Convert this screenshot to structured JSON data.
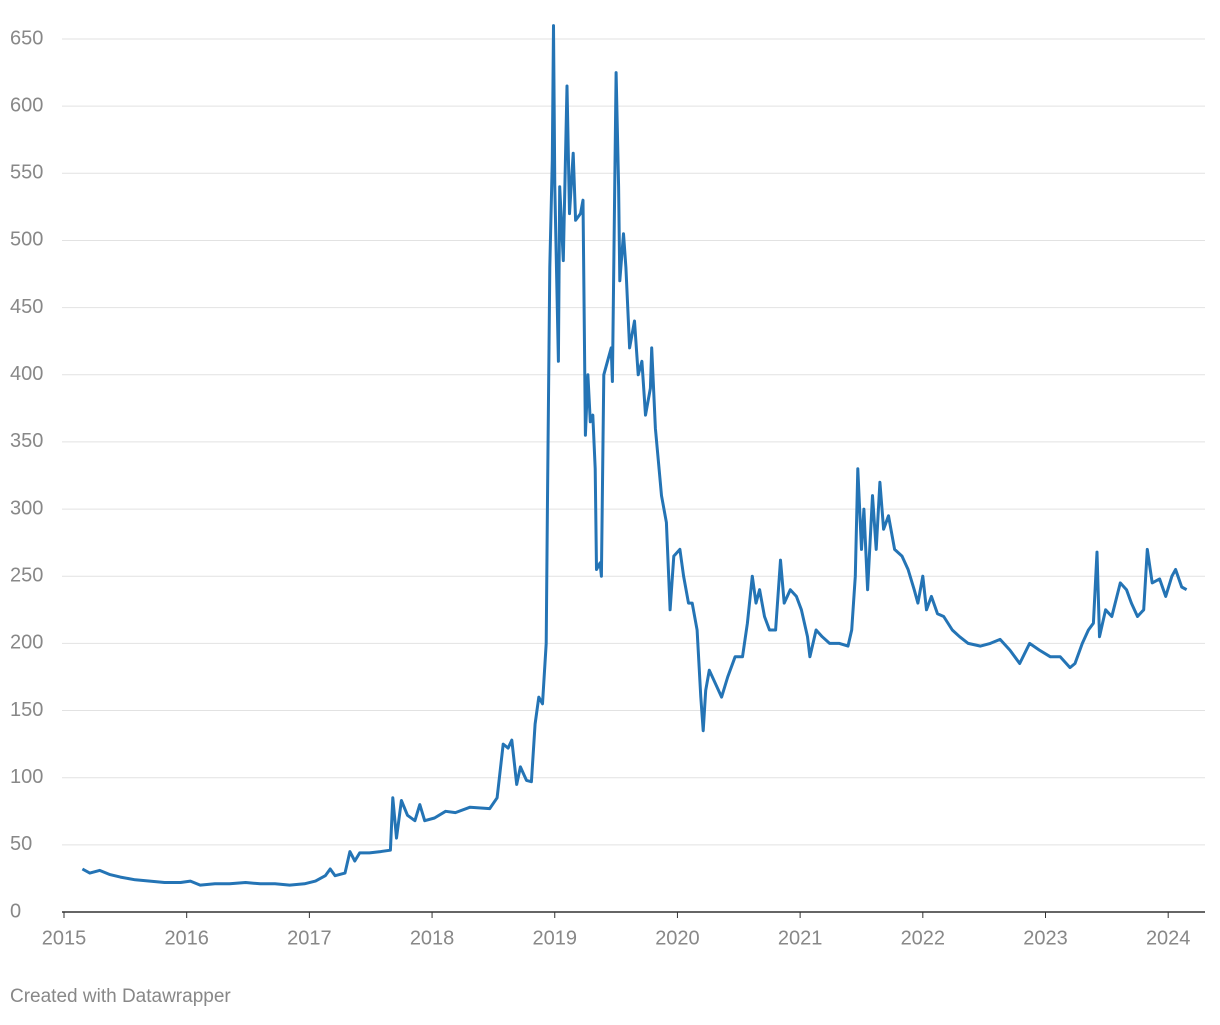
{
  "chart_data": {
    "type": "line",
    "color": "#2474b5",
    "grid": true,
    "footer": "Created with Datawrapper",
    "xlim": [
      2015,
      2024.3
    ],
    "xticks": [
      2015,
      2016,
      2017,
      2018,
      2019,
      2020,
      2021,
      2022,
      2023,
      2024
    ],
    "ylim": [
      0,
      650
    ],
    "yticks": [
      0,
      50,
      100,
      150,
      200,
      250,
      300,
      350,
      400,
      450,
      500,
      550,
      600,
      650
    ],
    "x": [
      2015.15,
      2015.21,
      2015.29,
      2015.37,
      2015.46,
      2015.58,
      2015.7,
      2015.82,
      2015.95,
      2016.03,
      2016.11,
      2016.23,
      2016.35,
      2016.48,
      2016.6,
      2016.72,
      2016.84,
      2016.96,
      2017.05,
      2017.13,
      2017.17,
      2017.21,
      2017.29,
      2017.33,
      2017.37,
      2017.41,
      2017.49,
      2017.58,
      2017.66,
      2017.68,
      2017.71,
      2017.75,
      2017.8,
      2017.86,
      2017.9,
      2017.94,
      2018.02,
      2018.11,
      2018.19,
      2018.31,
      2018.47,
      2018.53,
      2018.58,
      2018.62,
      2018.65,
      2018.69,
      2018.72,
      2018.77,
      2018.81,
      2018.84,
      2018.87,
      2018.9,
      2018.93,
      2018.94,
      2018.96,
      2018.98,
      2018.99,
      2019.0,
      2019.03,
      2019.04,
      2019.07,
      2019.1,
      2019.12,
      2019.15,
      2019.17,
      2019.21,
      2019.23,
      2019.25,
      2019.27,
      2019.29,
      2019.31,
      2019.33,
      2019.34,
      2019.37,
      2019.38,
      2019.4,
      2019.43,
      2019.46,
      2019.47,
      2019.5,
      2019.52,
      2019.53,
      2019.56,
      2019.58,
      2019.61,
      2019.65,
      2019.68,
      2019.71,
      2019.74,
      2019.78,
      2019.79,
      2019.82,
      2019.86,
      2019.87,
      2019.91,
      2019.94,
      2019.97,
      2020.02,
      2020.05,
      2020.09,
      2020.12,
      2020.16,
      2020.19,
      2020.21,
      2020.23,
      2020.26,
      2020.31,
      2020.36,
      2020.41,
      2020.47,
      2020.53,
      2020.57,
      2020.61,
      2020.64,
      2020.67,
      2020.71,
      2020.75,
      2020.8,
      2020.84,
      2020.87,
      2020.92,
      2020.97,
      2021.01,
      2021.06,
      2021.08,
      2021.13,
      2021.18,
      2021.24,
      2021.32,
      2021.39,
      2021.42,
      2021.45,
      2021.47,
      2021.5,
      2021.52,
      2021.55,
      2021.59,
      2021.62,
      2021.65,
      2021.68,
      2021.72,
      2021.77,
      2021.83,
      2021.88,
      2021.93,
      2021.96,
      2022.0,
      2022.03,
      2022.07,
      2022.12,
      2022.17,
      2022.24,
      2022.3,
      2022.37,
      2022.47,
      2022.55,
      2022.63,
      2022.71,
      2022.79,
      2022.87,
      2022.95,
      2023.04,
      2023.12,
      2023.2,
      2023.24,
      2023.3,
      2023.35,
      2023.39,
      2023.42,
      2023.44,
      2023.49,
      2023.54,
      2023.61,
      2023.66,
      2023.7,
      2023.75,
      2023.8,
      2023.83,
      2023.87,
      2023.93,
      2023.98,
      2024.03,
      2024.06,
      2024.11,
      2024.15
    ],
    "values": [
      32,
      29,
      31,
      28,
      26,
      24,
      23,
      22,
      22,
      23,
      20,
      21,
      21,
      22,
      21,
      21,
      20,
      21,
      23,
      27,
      32,
      27,
      29,
      45,
      38,
      44,
      44,
      45,
      46,
      85,
      55,
      83,
      72,
      68,
      80,
      68,
      70,
      75,
      74,
      78,
      77,
      85,
      125,
      122,
      128,
      95,
      108,
      98,
      97,
      140,
      160,
      155,
      200,
      300,
      480,
      560,
      660,
      540,
      410,
      540,
      485,
      615,
      520,
      565,
      515,
      520,
      530,
      355,
      400,
      365,
      370,
      330,
      255,
      260,
      250,
      400,
      410,
      420,
      395,
      625,
      540,
      470,
      505,
      480,
      420,
      440,
      400,
      410,
      370,
      390,
      420,
      360,
      320,
      310,
      290,
      225,
      265,
      270,
      250,
      230,
      230,
      210,
      160,
      135,
      165,
      180,
      170,
      160,
      175,
      190,
      190,
      215,
      250,
      230,
      240,
      220,
      210,
      210,
      262,
      230,
      240,
      235,
      225,
      205,
      190,
      210,
      205,
      200,
      200,
      198,
      210,
      250,
      330,
      270,
      300,
      240,
      310,
      270,
      320,
      285,
      295,
      270,
      265,
      255,
      240,
      230,
      250,
      225,
      235,
      222,
      220,
      210,
      205,
      200,
      198,
      200,
      203,
      195,
      185,
      200,
      195,
      190,
      190,
      182,
      185,
      200,
      210,
      215,
      268,
      205,
      225,
      220,
      245,
      240,
      230,
      220,
      225,
      270,
      245,
      248,
      235,
      250,
      255,
      242,
      240
    ]
  }
}
